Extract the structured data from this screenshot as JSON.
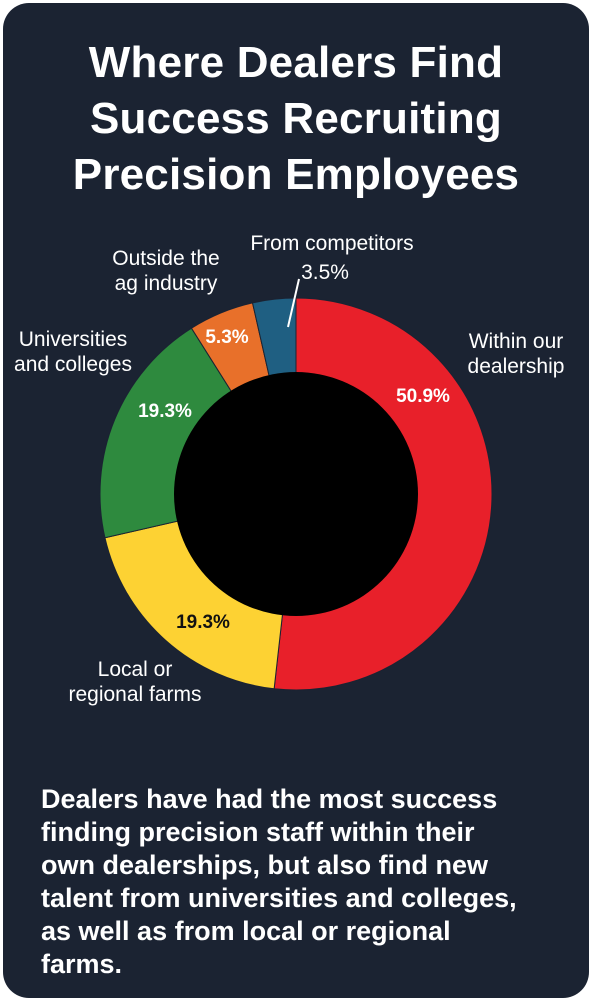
{
  "title_lines": [
    "Where Dealers Find",
    "Success Recruiting",
    "Precision Employees"
  ],
  "caption_lines": [
    "Dealers have had the most success",
    "finding precision staff within their",
    "own dealerships, but also find new",
    "talent from universities and colleges,",
    "as well as from local or regional",
    "farms."
  ],
  "colors": {
    "background": "#1b2332",
    "hole": "#000000"
  },
  "chart_data": {
    "type": "pie",
    "donut": true,
    "unit": "%",
    "slices": [
      {
        "label": [
          "Within our",
          "dealership"
        ],
        "value": 50.9,
        "value_label": "50.9%",
        "color": "#e8202a",
        "value_color": "#ffffff"
      },
      {
        "label": [
          "Local or",
          "regional farms"
        ],
        "value": 19.3,
        "value_label": "19.3%",
        "color": "#fdd233",
        "value_color": "#111111"
      },
      {
        "label": [
          "Universities",
          "and colleges"
        ],
        "value": 19.3,
        "value_label": "19.3%",
        "color": "#2e8a3e",
        "value_color": "#ffffff"
      },
      {
        "label": [
          "Outside the",
          "ag industry"
        ],
        "value": 5.3,
        "value_label": "5.3%",
        "color": "#e8702a",
        "value_color": "#ffffff"
      },
      {
        "label": [
          "From competitors"
        ],
        "value": 3.5,
        "value_label": "3.5%",
        "color": "#1f5f82",
        "value_color": "#ffffff"
      }
    ]
  }
}
